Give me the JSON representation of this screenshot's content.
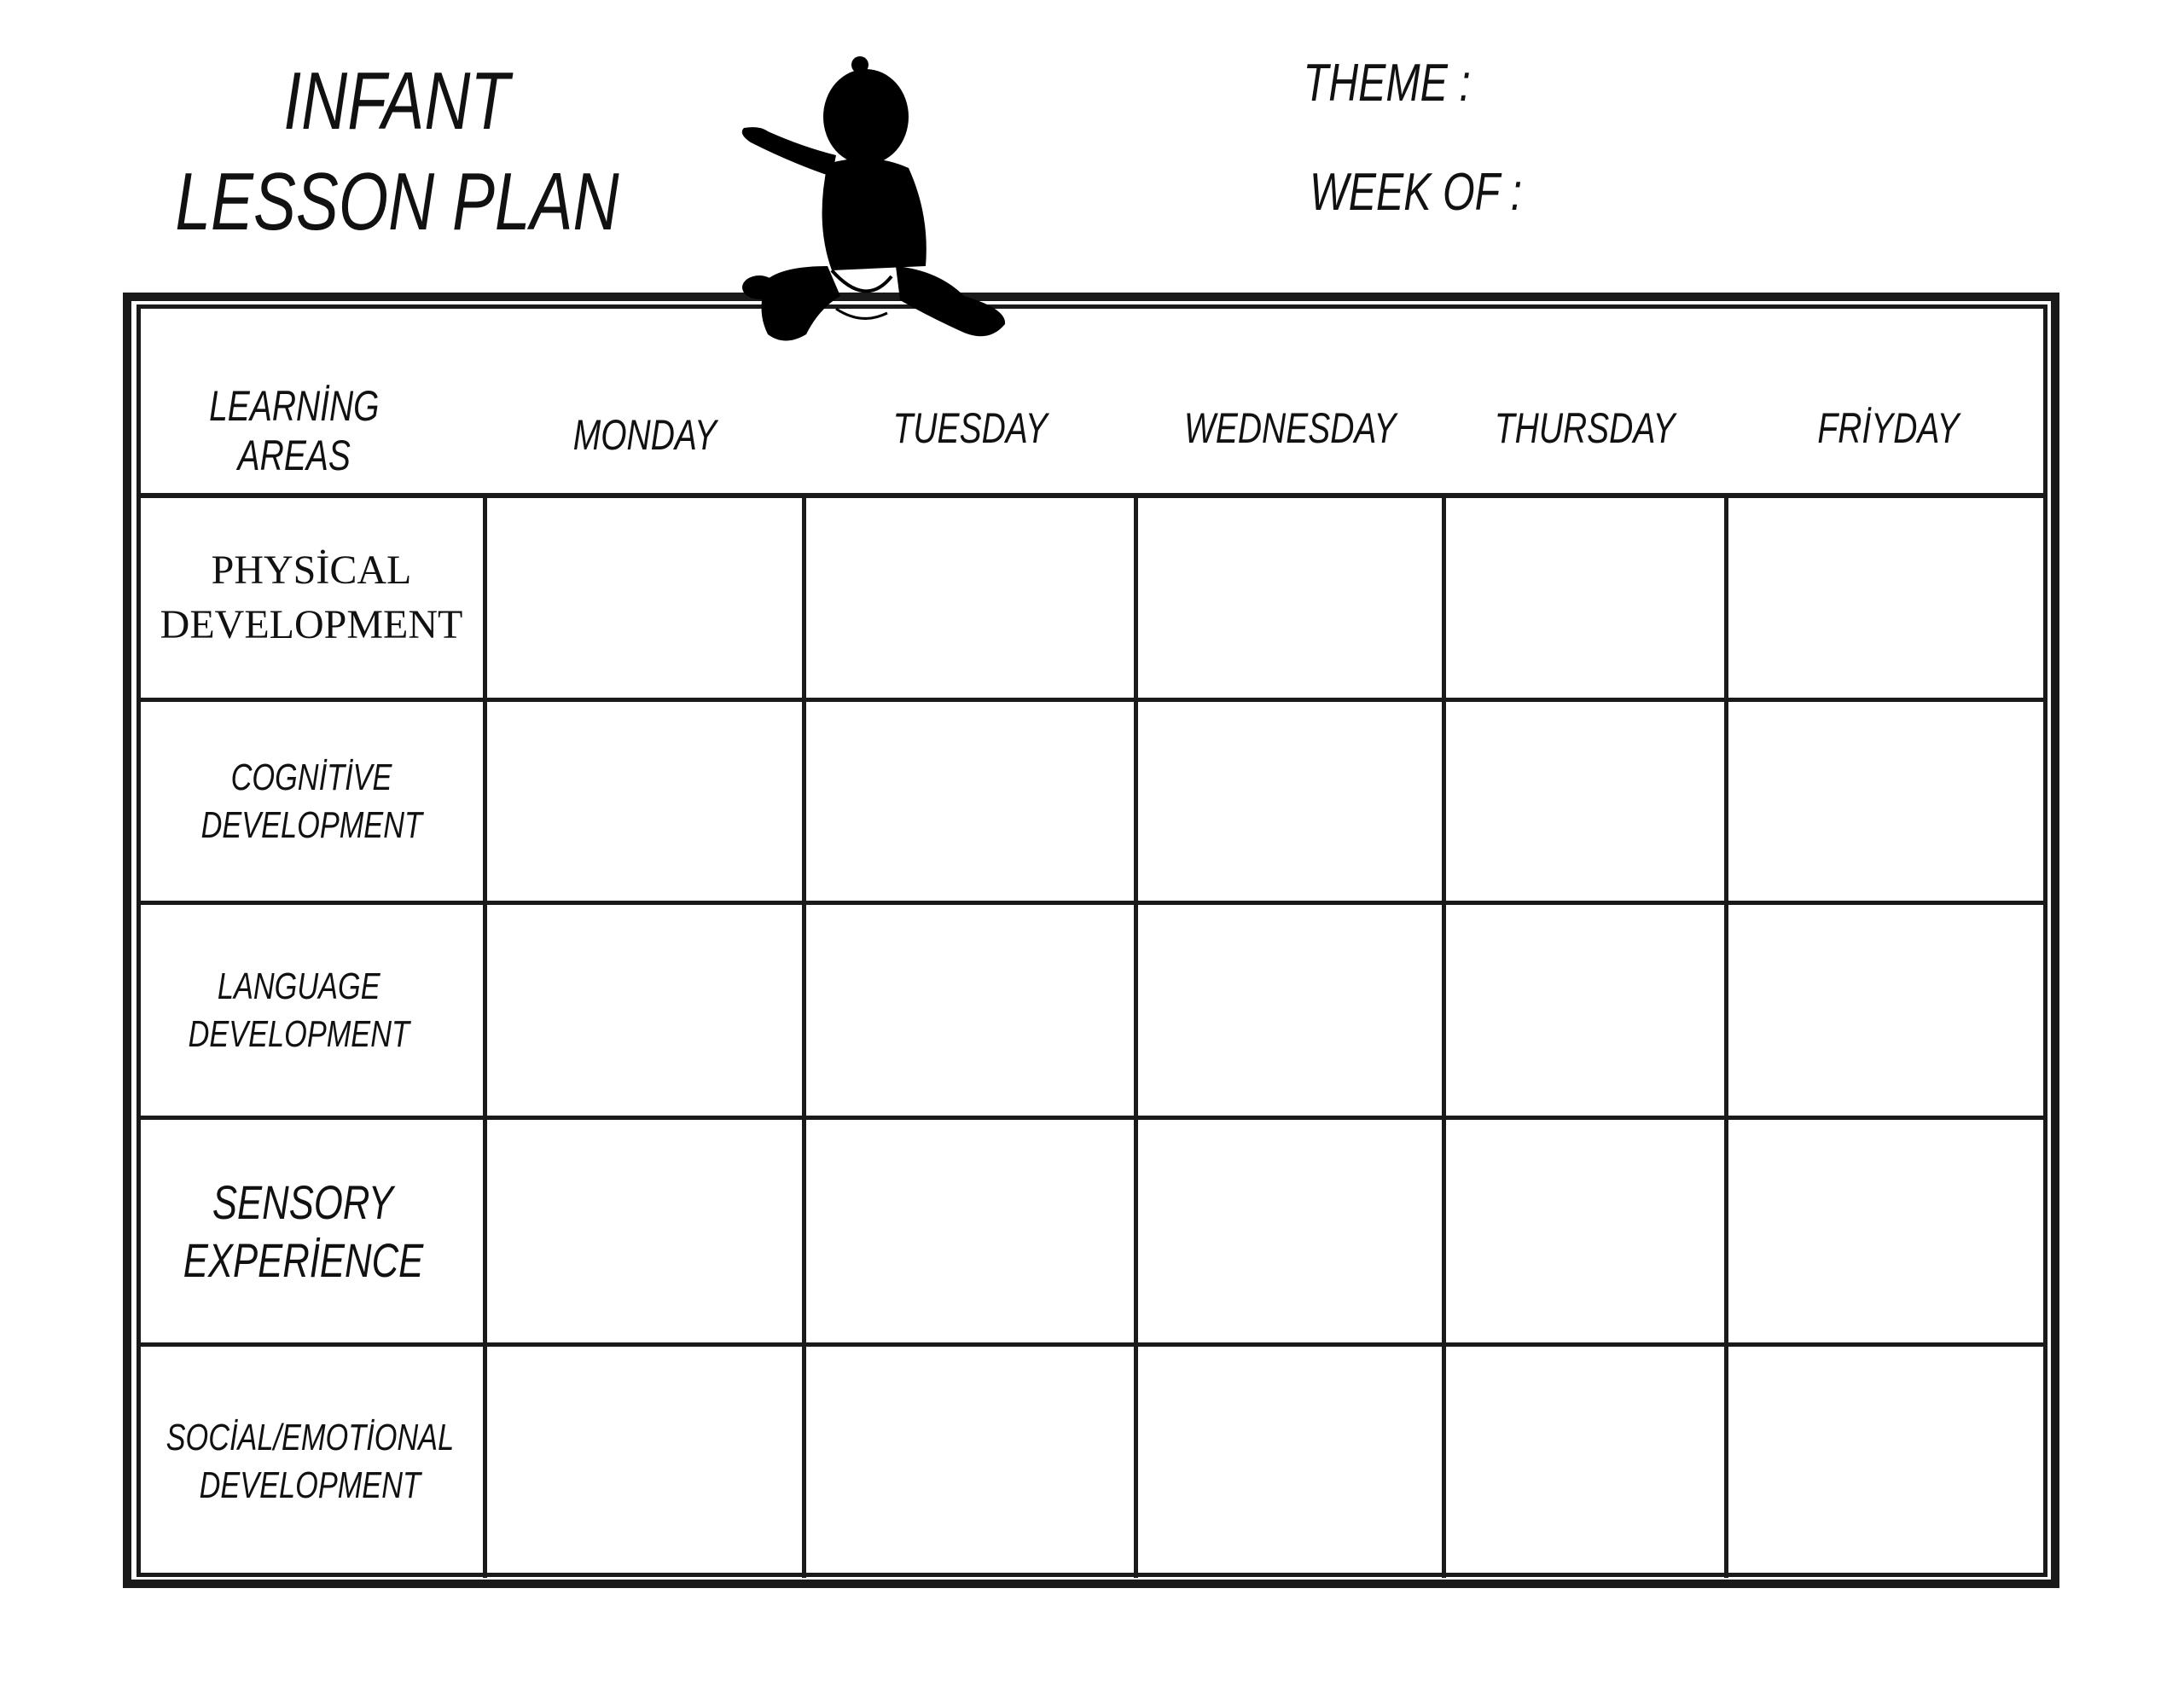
{
  "title": {
    "line1": "INFANT",
    "line2": "LESSON PLAN"
  },
  "theme_label": "THEME :",
  "week_of_label": "WEEK OF :",
  "table": {
    "corner_header": {
      "line1": "LEARNİNG",
      "line2": "AREAS"
    },
    "days": [
      "MONDAY",
      "TUESDAY",
      "WEDNESDAY",
      "THURSDAY",
      "FRİYDAY"
    ],
    "areas": [
      {
        "line1": "PHYSİCAL",
        "line2": "DEVELOPMENT"
      },
      {
        "line1": "COGNİTİVE",
        "line2": "DEVELOPMENT"
      },
      {
        "line1": "LANGUAGE",
        "line2": "DEVELOPMENT"
      },
      {
        "line1": "SENSORY",
        "line2": "EXPERİENCE"
      },
      {
        "line1": "SOCİAL/EMOTİONAL",
        "line2": "DEVELOPMENT"
      }
    ]
  },
  "icons": {
    "decoration": "baby-silhouette-icon"
  }
}
